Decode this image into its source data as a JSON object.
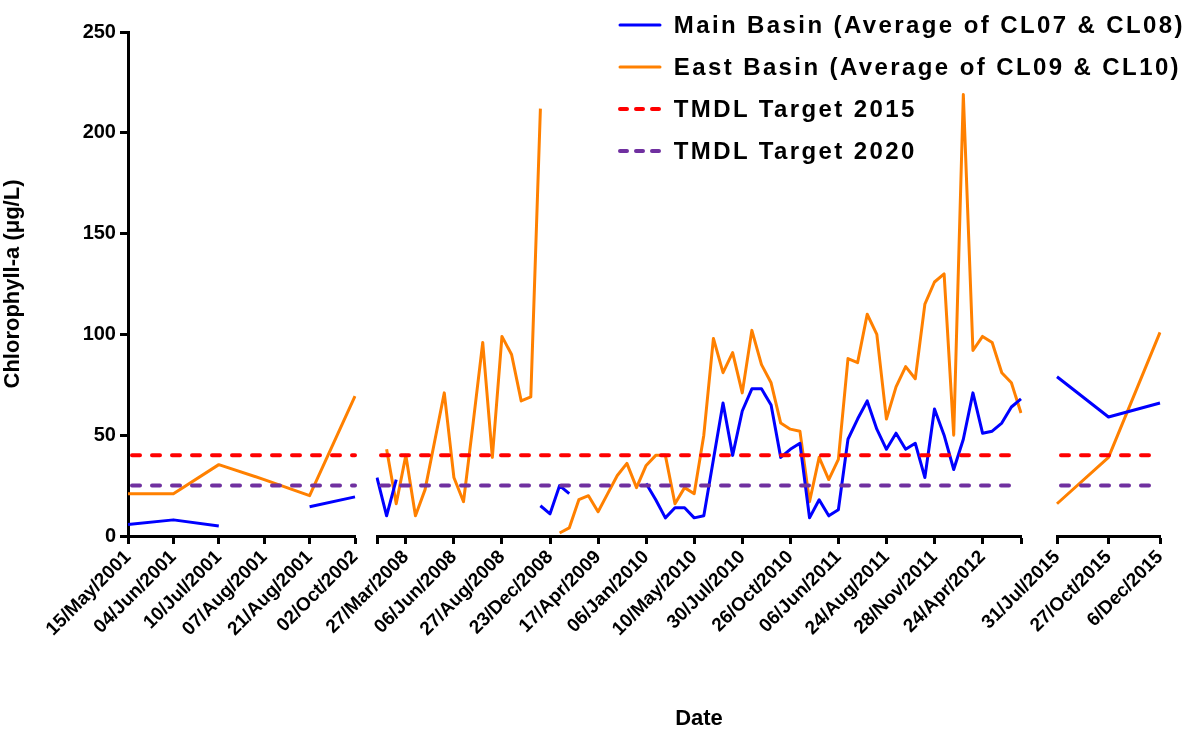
{
  "chart_data": [
    {
      "type": "line",
      "ylabel": "Chlorophyll-a (μg/L)",
      "categories": [
        "15/May/2001",
        "04/Jun/2001",
        "10/Jul/2001",
        "07/Aug/2001",
        "21/Aug/2001",
        "02/Oct/2002"
      ],
      "series": [
        {
          "color": "#0000ff",
          "values": [
            5.7,
            8,
            5,
            null,
            14.5,
            19.4
          ]
        },
        {
          "color": "#ff8000",
          "values": [
            21,
            21,
            35.4,
            28,
            20,
            69.4
          ]
        }
      ],
      "ylim": [
        0,
        250
      ],
      "yticks": [
        0,
        50,
        100,
        150,
        200,
        250
      ],
      "grid": false,
      "ref_lines": [
        {
          "axis": "y",
          "value": 40,
          "color": "#ff0000",
          "line_style": "dashed"
        },
        {
          "axis": "y",
          "value": 25,
          "color": "#7030a0",
          "line_style": "dashed"
        }
      ]
    },
    {
      "type": "line",
      "xlabel": "Date",
      "categories": [
        null,
        null,
        null,
        "27/Mar/2008",
        null,
        null,
        null,
        null,
        "06/Jun/2008",
        null,
        null,
        null,
        null,
        "27/Aug/2008",
        null,
        null,
        null,
        null,
        "23/Dec/2008",
        null,
        null,
        null,
        null,
        "17/Apr/2009",
        null,
        null,
        null,
        null,
        "06/Jan/2010",
        null,
        null,
        null,
        null,
        "10/May/2010",
        null,
        null,
        null,
        null,
        "30/Jul/2010",
        null,
        null,
        null,
        null,
        "26/Oct/2010",
        null,
        null,
        null,
        null,
        "06/Jun/2011",
        null,
        null,
        null,
        null,
        "24/Aug/2011",
        null,
        null,
        null,
        null,
        "28/Nov/2011",
        null,
        null,
        null,
        null,
        "24/Apr/2012",
        null,
        null,
        null,
        null
      ],
      "series": [
        {
          "name": "Main Basin (Average of CL07 & CL08)",
          "color": "#0000ff",
          "values": [
            29,
            10,
            28,
            null,
            null,
            null,
            null,
            null,
            null,
            null,
            null,
            null,
            null,
            null,
            null,
            null,
            null,
            15,
            11,
            25,
            21,
            null,
            null,
            null,
            null,
            null,
            null,
            null,
            26,
            18,
            9,
            14,
            14,
            9,
            10,
            38,
            66,
            40,
            62,
            73,
            73,
            65,
            39,
            43,
            46,
            9,
            18,
            10,
            13,
            48,
            58,
            67,
            53,
            43,
            51,
            43,
            46,
            29,
            63,
            50,
            33,
            48,
            71,
            51,
            52,
            56,
            64,
            68
          ]
        },
        {
          "name": "East Basin (Average of CL09 & CL10)",
          "color": "#ff8000",
          "values": [
            null,
            43,
            16,
            40,
            10,
            23,
            47,
            71,
            29,
            17,
            56,
            96,
            39,
            99,
            90,
            67,
            69,
            212,
            null,
            1.5,
            4,
            18,
            20,
            12,
            21,
            30,
            36,
            24,
            35,
            40,
            40,
            16,
            24,
            21,
            50,
            98,
            81,
            91,
            71,
            102,
            85,
            76,
            56,
            53,
            52,
            17,
            39,
            28,
            38,
            88,
            86,
            110,
            100,
            58,
            74,
            84,
            78,
            115,
            126,
            130,
            50,
            219,
            92,
            99,
            96,
            81,
            76,
            61
          ]
        }
      ],
      "ylim": [
        0,
        250
      ],
      "tick_labels": "x",
      "grid": false,
      "legend": "top right",
      "ref_lines": [
        {
          "axis": "y",
          "value": 40,
          "label": "TMDL Target 2015",
          "color": "#ff0000",
          "line_style": "dashed"
        },
        {
          "axis": "y",
          "value": 25,
          "label": "TMDL Target 2020",
          "color": "#7030a0",
          "line_style": "dashed"
        }
      ]
    },
    {
      "type": "line",
      "categories": [
        "31/Jul/2015",
        "27/Oct/2015",
        "6/Dec/2015"
      ],
      "series": [
        {
          "color": "#0000ff",
          "values": [
            79,
            59,
            66
          ]
        },
        {
          "color": "#ff8000",
          "values": [
            16,
            39,
            101
          ]
        }
      ],
      "ylim": [
        0,
        250
      ],
      "tick_labels": "x",
      "grid": false,
      "ref_lines": [
        {
          "axis": "y",
          "value": 40,
          "color": "#ff0000",
          "line_style": "dashed"
        },
        {
          "axis": "y",
          "value": 25,
          "color": "#7030a0",
          "line_style": "dashed"
        }
      ]
    }
  ]
}
